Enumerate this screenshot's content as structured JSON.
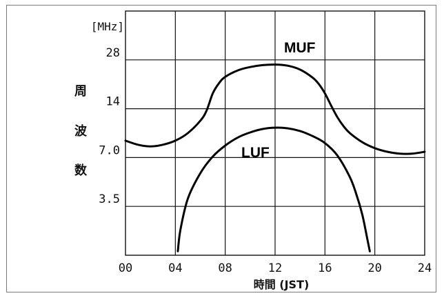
{
  "chart_data": {
    "type": "line",
    "y_unit_label": "[MHz]",
    "ylabel_chars": [
      "周",
      "波",
      "数"
    ],
    "xlabel": "時間 (JST)",
    "x_ticks": [
      0,
      4,
      8,
      12,
      16,
      20,
      24
    ],
    "x_tick_labels": [
      "00",
      "04",
      "08",
      "12",
      "16",
      "20",
      "24"
    ],
    "xlim": [
      0,
      24
    ],
    "y_scale": "log",
    "y_ticks": [
      3.5,
      7.0,
      14,
      28
    ],
    "y_tick_labels": [
      "3.5",
      "7.0",
      "14",
      "28"
    ],
    "ylim": [
      1.75,
      56
    ],
    "grid": true,
    "series": [
      {
        "name": "MUF",
        "x": [
          0,
          1,
          2,
          3,
          4,
          5,
          6,
          6.5,
          7,
          7.5,
          8,
          9,
          10,
          11,
          12,
          13,
          14,
          15,
          15.5,
          16,
          16.5,
          17,
          17.5,
          18,
          19,
          20,
          21,
          22,
          23,
          24
        ],
        "y": [
          8.9,
          8.4,
          8.2,
          8.4,
          8.9,
          9.9,
          11.8,
          13.6,
          17.4,
          20.1,
          22.0,
          24.1,
          25.3,
          26.0,
          26.2,
          25.8,
          24.4,
          21.8,
          19.9,
          17.4,
          14.6,
          12.4,
          10.9,
          9.9,
          8.7,
          8.0,
          7.6,
          7.4,
          7.4,
          7.6
        ]
      },
      {
        "name": "LUF",
        "x": [
          4.2,
          4.4,
          5,
          6,
          7,
          8,
          9,
          10,
          11,
          12,
          13,
          14,
          15,
          16,
          17,
          18,
          18.5,
          19,
          19.4,
          19.6
        ],
        "y": [
          1.85,
          2.5,
          3.9,
          5.6,
          7.1,
          8.3,
          9.3,
          10.0,
          10.5,
          10.7,
          10.6,
          10.2,
          9.5,
          8.6,
          7.2,
          5.3,
          4.2,
          3.1,
          2.2,
          1.85
        ]
      }
    ]
  }
}
